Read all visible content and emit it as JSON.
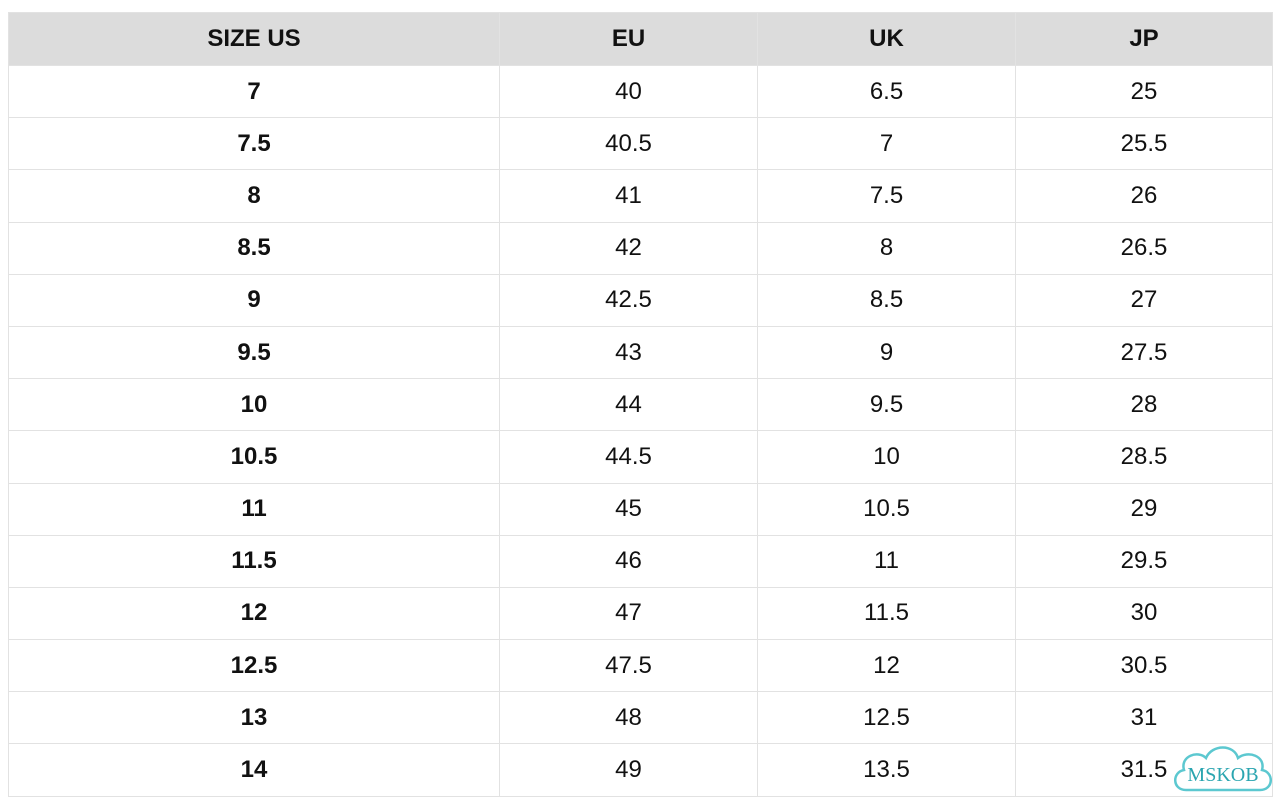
{
  "table": {
    "header": [
      "SIZE US",
      "EU",
      "UK",
      "JP"
    ],
    "rows": [
      [
        "7",
        "40",
        "6.5",
        "25"
      ],
      [
        "7.5",
        "40.5",
        "7",
        "25.5"
      ],
      [
        "8",
        "41",
        "7.5",
        "26"
      ],
      [
        "8.5",
        "42",
        "8",
        "26.5"
      ],
      [
        "9",
        "42.5",
        "8.5",
        "27"
      ],
      [
        "9.5",
        "43",
        "9",
        "27.5"
      ],
      [
        "10",
        "44",
        "9.5",
        "28"
      ],
      [
        "10.5",
        "44.5",
        "10",
        "28.5"
      ],
      [
        "11",
        "45",
        "10.5",
        "29"
      ],
      [
        "11.5",
        "46",
        "11",
        "29.5"
      ],
      [
        "12",
        "47",
        "11.5",
        "30"
      ],
      [
        "12.5",
        "47.5",
        "12",
        "30.5"
      ],
      [
        "13",
        "48",
        "12.5",
        "31"
      ],
      [
        "14",
        "49",
        "13.5",
        "31.5"
      ]
    ]
  },
  "watermark": "MSKOB"
}
